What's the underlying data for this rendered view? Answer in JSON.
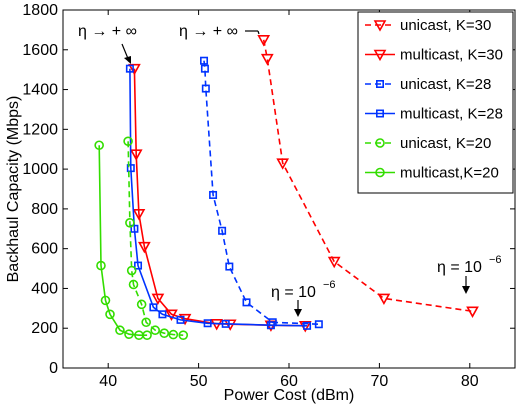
{
  "chart_data": {
    "type": "line",
    "title": "",
    "xlabel": "Power Cost (dBm)",
    "ylabel": "Backhaul Capacity (Mbps)",
    "xlim": [
      35,
      85
    ],
    "ylim": [
      0,
      1800
    ],
    "xticks": [
      40,
      50,
      60,
      70,
      80
    ],
    "yticks": [
      0,
      200,
      400,
      600,
      800,
      1000,
      1200,
      1400,
      1600,
      1800
    ],
    "grid": false,
    "legend_position": "top-right",
    "series": [
      {
        "name": "unicast, K=30",
        "color": "#ff0000",
        "dash": "dashed",
        "marker": "triangle-down",
        "points": [
          [
            57.2,
            1650
          ],
          [
            57.6,
            1555
          ],
          [
            59.3,
            1030
          ],
          [
            65.0,
            535
          ],
          [
            70.5,
            350
          ],
          [
            80.3,
            285
          ]
        ]
      },
      {
        "name": "multicast, K=30",
        "color": "#ff0000",
        "dash": "solid",
        "marker": "triangle-down",
        "points": [
          [
            42.9,
            1505
          ],
          [
            43.1,
            1075
          ],
          [
            43.4,
            775
          ],
          [
            44.0,
            610
          ],
          [
            45.5,
            350
          ],
          [
            47.0,
            270
          ],
          [
            48.5,
            248
          ],
          [
            52.0,
            222
          ],
          [
            53.5,
            220
          ],
          [
            58.0,
            215
          ],
          [
            61.8,
            212
          ]
        ]
      },
      {
        "name": "unicast, K=28",
        "color": "#0033ff",
        "dash": "dashed",
        "marker": "square",
        "points": [
          [
            50.6,
            1545
          ],
          [
            50.7,
            1505
          ],
          [
            50.8,
            1405
          ],
          [
            51.6,
            870
          ],
          [
            52.6,
            690
          ],
          [
            53.4,
            510
          ],
          [
            55.3,
            330
          ],
          [
            58.2,
            230
          ],
          [
            63.3,
            220
          ]
        ]
      },
      {
        "name": "multicast, K=28",
        "color": "#0033ff",
        "dash": "solid",
        "marker": "square",
        "points": [
          [
            42.4,
            1505
          ],
          [
            42.5,
            1005
          ],
          [
            42.9,
            700
          ],
          [
            43.3,
            515
          ],
          [
            45.0,
            305
          ],
          [
            46.0,
            270
          ],
          [
            48.0,
            242
          ],
          [
            51.0,
            225
          ],
          [
            53.0,
            222
          ],
          [
            58.0,
            215
          ],
          [
            62.0,
            212
          ]
        ]
      },
      {
        "name": "unicast, K=20",
        "color": "#33dd00",
        "dash": "dashed",
        "marker": "circle",
        "points": [
          [
            42.2,
            1140
          ],
          [
            42.4,
            730
          ],
          [
            42.6,
            490
          ],
          [
            42.8,
            420
          ],
          [
            43.7,
            320
          ],
          [
            44.2,
            230
          ],
          [
            45.2,
            190
          ],
          [
            46.2,
            175
          ],
          [
            47.2,
            168
          ],
          [
            48.3,
            165
          ]
        ]
      },
      {
        "name": "multicast,K=20",
        "color": "#33dd00",
        "dash": "solid",
        "marker": "circle",
        "points": [
          [
            39.0,
            1120
          ],
          [
            39.2,
            515
          ],
          [
            39.7,
            340
          ],
          [
            40.2,
            270
          ],
          [
            41.3,
            190
          ],
          [
            42.3,
            170
          ],
          [
            43.4,
            165
          ],
          [
            44.3,
            165
          ]
        ]
      }
    ],
    "annotations": [
      {
        "id": "eta-inf-left",
        "text": "η → + ∞"
      },
      {
        "id": "eta-inf-right",
        "text": "η → + ∞"
      },
      {
        "id": "eta-1e6-mid",
        "base": "η = 10",
        "exponent": "−6"
      },
      {
        "id": "eta-1e6-right",
        "base": "η = 10",
        "exponent": "−6"
      }
    ]
  }
}
